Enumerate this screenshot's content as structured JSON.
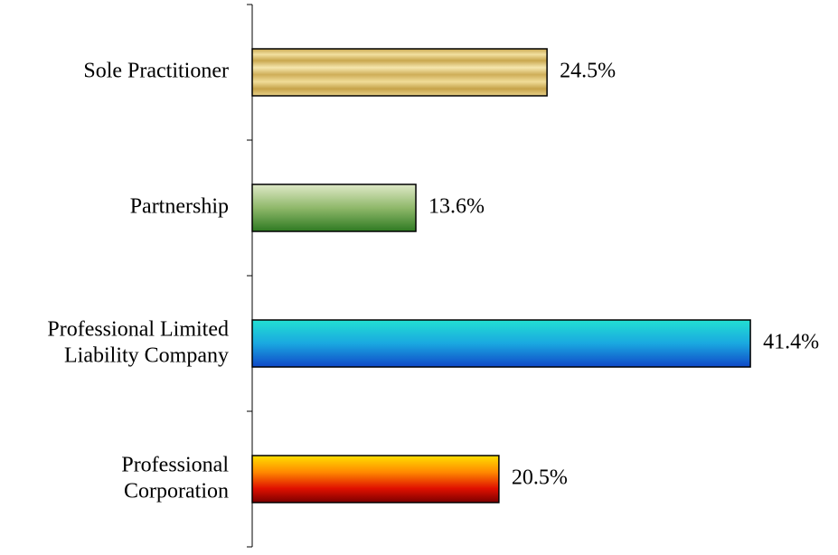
{
  "chart_data": {
    "type": "barh",
    "categories": [
      "Sole Practitioner",
      "Partnership",
      "Professional Limited\nLiability Company",
      "Professional\nCorporation"
    ],
    "values": [
      24.5,
      13.6,
      41.4,
      20.5
    ],
    "value_labels": [
      "24.5%",
      "13.6%",
      "41.4%",
      "20.5%"
    ],
    "xlim": [
      0,
      45
    ]
  }
}
